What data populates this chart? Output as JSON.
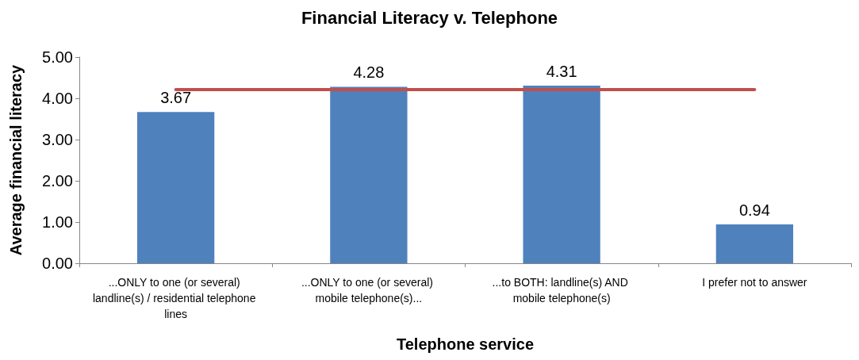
{
  "chart_data": {
    "type": "bar",
    "title": "Financial Literacy v. Telephone",
    "xlabel": "Telephone service",
    "ylabel": "Average financial literacy",
    "categories": [
      "...ONLY to one (or several) landline(s) / residential telephone lines",
      "...ONLY to one (or several) mobile telephone(s)...",
      "...to BOTH: landline(s) AND mobile telephone(s)",
      "I prefer not to answer"
    ],
    "series": [
      {
        "color": "#4f81bd",
        "values": [
          3.67,
          4.28,
          4.31,
          0.94
        ],
        "value_labels": [
          "3.67",
          "4.28",
          "4.31",
          "0.94"
        ]
      },
      {
        "type": "line",
        "color": "#c0504d",
        "values": [
          4.21,
          4.21,
          4.21,
          4.21
        ]
      }
    ],
    "ylim": [
      0,
      5
    ],
    "yticks": [
      {
        "value": 0,
        "label": "0.00"
      },
      {
        "value": 1,
        "label": "1.00"
      },
      {
        "value": 2,
        "label": "2.00"
      },
      {
        "value": 3,
        "label": "3.00"
      },
      {
        "value": 4,
        "label": "4.00"
      },
      {
        "value": 5,
        "label": "5.00"
      }
    ],
    "grid": false,
    "marker": "none",
    "line_style": "solid"
  }
}
